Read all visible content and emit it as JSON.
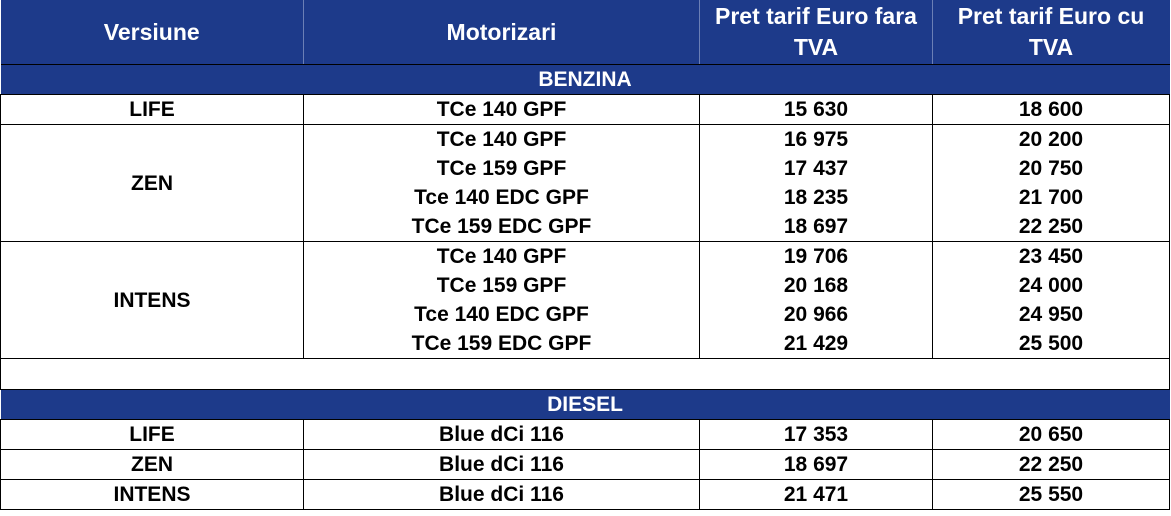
{
  "headers": {
    "versiune": "Versiune",
    "motorizari": "Motorizari",
    "pret_fara_tva": "Pret tarif Euro fara TVA",
    "pret_cu_tva": "Pret tarif Euro cu TVA"
  },
  "sections": {
    "benzina": {
      "title": "BENZINA",
      "groups": [
        {
          "versiune": "LIFE",
          "rows": [
            {
              "motor": "TCe 140 GPF",
              "fara_tva": "15 630",
              "cu_tva": "18 600"
            }
          ]
        },
        {
          "versiune": "ZEN",
          "rows": [
            {
              "motor": "TCe 140 GPF",
              "fara_tva": "16 975",
              "cu_tva": "20 200"
            },
            {
              "motor": "TCe 159 GPF",
              "fara_tva": "17 437",
              "cu_tva": "20 750"
            },
            {
              "motor": "Tce 140 EDC GPF",
              "fara_tva": "18 235",
              "cu_tva": "21 700"
            },
            {
              "motor": "TCe 159 EDC GPF",
              "fara_tva": "18 697",
              "cu_tva": "22 250"
            }
          ]
        },
        {
          "versiune": "INTENS",
          "rows": [
            {
              "motor": "TCe 140 GPF",
              "fara_tva": "19 706",
              "cu_tva": "23 450"
            },
            {
              "motor": "TCe 159 GPF",
              "fara_tva": "20 168",
              "cu_tva": "24 000"
            },
            {
              "motor": "Tce 140 EDC GPF",
              "fara_tva": "20 966",
              "cu_tva": "24 950"
            },
            {
              "motor": "TCe 159 EDC GPF",
              "fara_tva": "21 429",
              "cu_tva": "25 500"
            }
          ]
        }
      ]
    },
    "diesel": {
      "title": "DIESEL",
      "groups": [
        {
          "versiune": "LIFE",
          "rows": [
            {
              "motor": "Blue dCi 116",
              "fara_tva": "17 353",
              "cu_tva": "20 650"
            }
          ]
        },
        {
          "versiune": "ZEN",
          "rows": [
            {
              "motor": "Blue dCi 116",
              "fara_tva": "18 697",
              "cu_tva": "22 250"
            }
          ]
        },
        {
          "versiune": "INTENS",
          "rows": [
            {
              "motor": "Blue dCi 116",
              "fara_tva": "21 471",
              "cu_tva": "25 550"
            }
          ]
        }
      ]
    }
  },
  "colors": {
    "header_bg": "#1d3a8a",
    "header_text": "#ffffff"
  }
}
